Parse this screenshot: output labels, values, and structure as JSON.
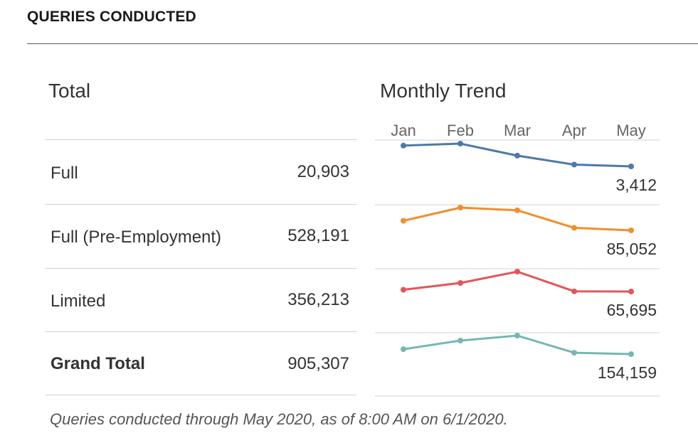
{
  "header": {
    "title": "QUERIES CONDUCTED"
  },
  "total_section": {
    "title": "Total"
  },
  "trend_section": {
    "title": "Monthly Trend"
  },
  "rows": [
    {
      "label": "Full",
      "value": "20,903",
      "bold": false
    },
    {
      "label": "Full (Pre-Employment)",
      "value": "528,191",
      "bold": false
    },
    {
      "label": "Limited",
      "value": "356,213",
      "bold": false
    },
    {
      "label": "Grand Total",
      "value": "905,307",
      "bold": true
    }
  ],
  "footnote": "Queries conducted through May 2020, as of 8:00 AM on  6/1/2020.",
  "chart_data": {
    "type": "line",
    "title": "Monthly Trend",
    "categories": [
      "Jan",
      "Feb",
      "Mar",
      "Apr",
      "May"
    ],
    "grid": false,
    "series": [
      {
        "row": "Full",
        "values": [
          4450,
          4550,
          3950,
          3500,
          3412
        ],
        "color": "#4e79a7",
        "end_label": "3,412"
      },
      {
        "row": "Full (Pre-Employment)",
        "values": [
          96000,
          111000,
          108000,
          88000,
          85052
        ],
        "color": "#f28e2b",
        "end_label": "85,052"
      },
      {
        "row": "Limited",
        "values": [
          68000,
          77000,
          92000,
          66000,
          65695
        ],
        "color": "#e15759",
        "end_label": "65,695"
      },
      {
        "row": "Grand Total",
        "values": [
          168000,
          192000,
          206000,
          158000,
          154159
        ],
        "color": "#76b7b2",
        "end_label": "154,159"
      }
    ]
  }
}
